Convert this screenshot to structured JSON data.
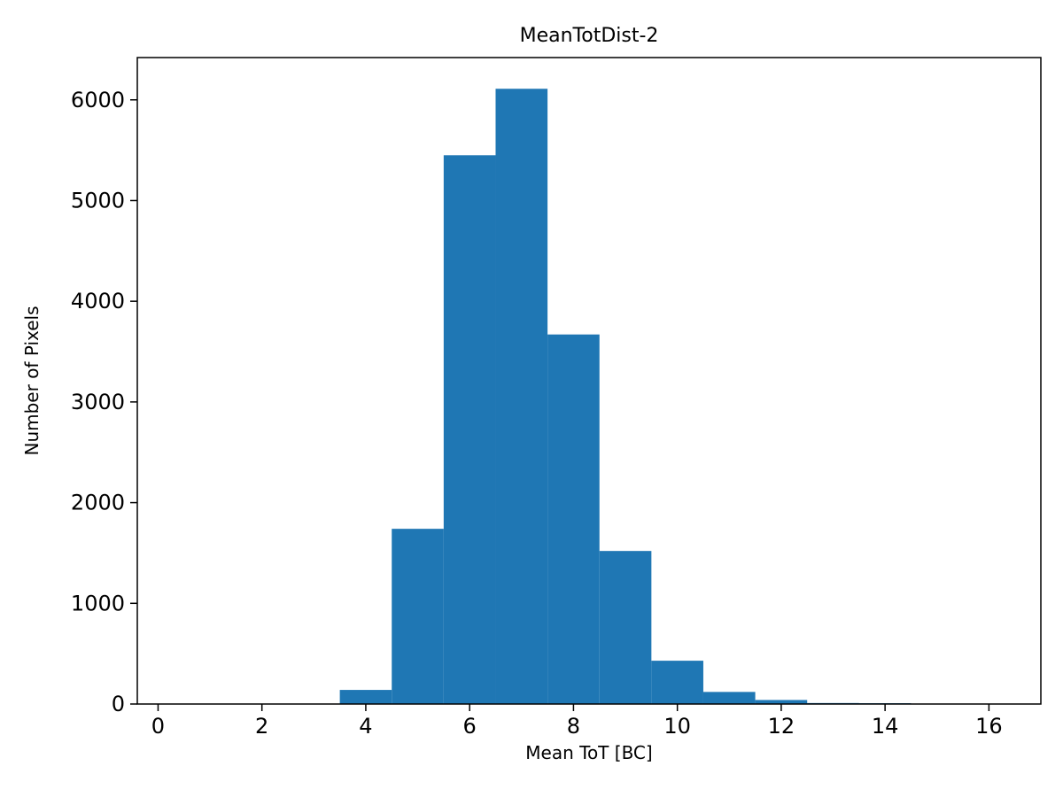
{
  "chart_data": {
    "type": "bar",
    "subtype": "histogram",
    "title": "MeanTotDist-2",
    "xlabel": "Mean ToT [BC]",
    "ylabel": "Number of Pixels",
    "bin_edges": [
      3.5,
      4.5,
      5.5,
      6.5,
      7.5,
      8.5,
      9.5,
      10.5,
      11.5,
      12.5,
      13.5,
      14.5
    ],
    "values": [
      140,
      1740,
      5450,
      6110,
      3670,
      1520,
      430,
      120,
      40,
      10,
      8
    ],
    "xlim": [
      -0.4,
      17.0
    ],
    "ylim": [
      0,
      6420
    ],
    "xticks": [
      0,
      2,
      4,
      6,
      8,
      10,
      12,
      14,
      16
    ],
    "yticks": [
      0,
      1000,
      2000,
      3000,
      4000,
      5000,
      6000
    ],
    "bar_color": "#1f77b4",
    "axis_color": "#000000",
    "background": "#ffffff",
    "grid": false,
    "legend": null
  }
}
